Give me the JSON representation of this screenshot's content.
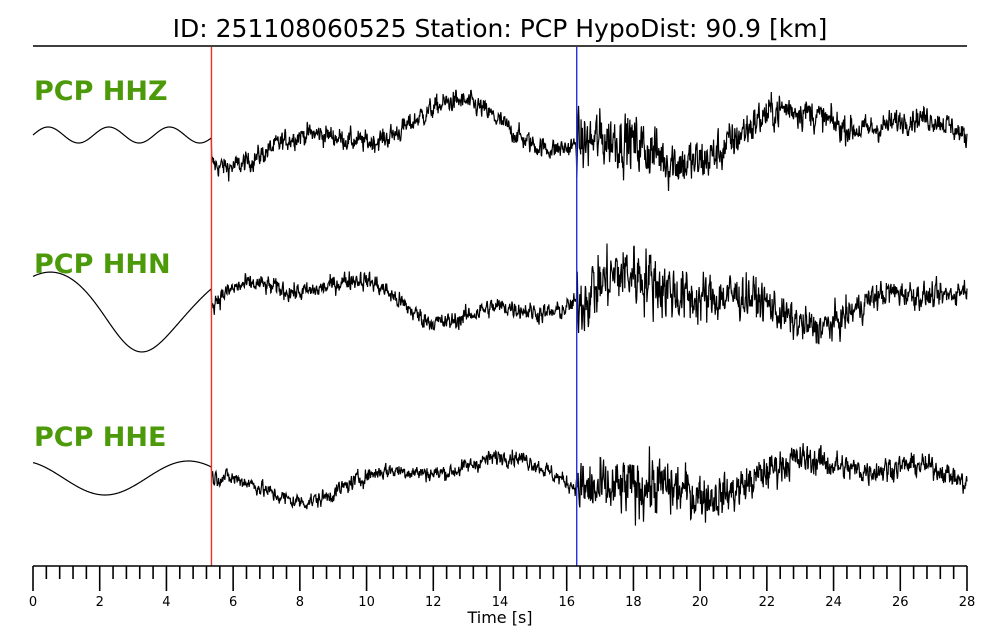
{
  "title": "ID: 251108060525   Station: PCP   HypoDist:    90.9 [km]",
  "colors": {
    "label": "#4c9a0a",
    "trace": "#000000",
    "p_pick": "#e8312b",
    "s_pick": "#2130e0"
  },
  "chart_data": {
    "type": "line",
    "title": "ID: 251108060525   Station: PCP   HypoDist:    90.9 [km]",
    "xlabel": "Time [s]",
    "ylabel": "",
    "xlim": [
      0,
      28
    ],
    "x_ticks": [
      0,
      2,
      4,
      6,
      8,
      10,
      12,
      14,
      16,
      18,
      20,
      22,
      24,
      26,
      28
    ],
    "x_tick_labels": [
      "0",
      "2",
      "4",
      "6",
      "8",
      "10",
      "12",
      "14",
      "16",
      "18",
      "20",
      "22",
      "24",
      "26",
      "28"
    ],
    "minor_tick_step": 0.4,
    "grid": false,
    "picks": [
      {
        "phase": "P",
        "time": 5.35,
        "color": "#e8312b"
      },
      {
        "phase": "S",
        "time": 16.3,
        "color": "#2130e0"
      }
    ],
    "series": [
      {
        "name": "PCP HHZ"
      },
      {
        "name": "PCP HHN"
      },
      {
        "name": "PCP HHE"
      }
    ]
  }
}
